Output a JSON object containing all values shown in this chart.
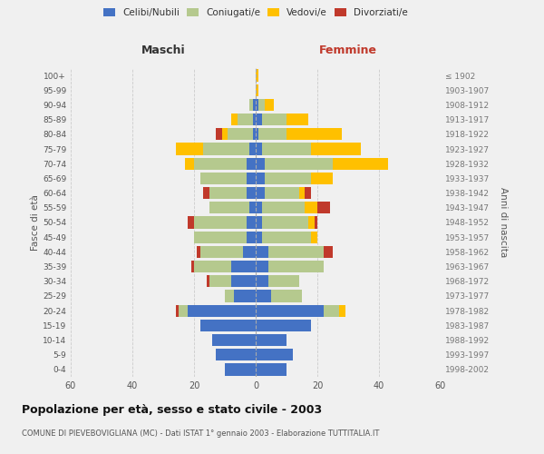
{
  "age_groups": [
    "0-4",
    "5-9",
    "10-14",
    "15-19",
    "20-24",
    "25-29",
    "30-34",
    "35-39",
    "40-44",
    "45-49",
    "50-54",
    "55-59",
    "60-64",
    "65-69",
    "70-74",
    "75-79",
    "80-84",
    "85-89",
    "90-94",
    "95-99",
    "100+"
  ],
  "birth_years": [
    "1998-2002",
    "1993-1997",
    "1988-1992",
    "1983-1987",
    "1978-1982",
    "1973-1977",
    "1968-1972",
    "1963-1967",
    "1958-1962",
    "1953-1957",
    "1948-1952",
    "1943-1947",
    "1938-1942",
    "1933-1937",
    "1928-1932",
    "1923-1927",
    "1918-1922",
    "1913-1917",
    "1908-1912",
    "1903-1907",
    "≤ 1902"
  ],
  "colors": {
    "celibi": "#4472c4",
    "coniugati": "#b5c98e",
    "vedovi": "#ffc000",
    "divorziati": "#c0392b"
  },
  "males": {
    "celibi": [
      10,
      13,
      14,
      18,
      22,
      7,
      8,
      8,
      4,
      3,
      3,
      2,
      3,
      3,
      3,
      2,
      1,
      1,
      1,
      0,
      0
    ],
    "coniugati": [
      0,
      0,
      0,
      0,
      3,
      3,
      7,
      12,
      14,
      17,
      17,
      13,
      12,
      15,
      17,
      15,
      8,
      5,
      1,
      0,
      0
    ],
    "vedovi": [
      0,
      0,
      0,
      0,
      0,
      0,
      0,
      0,
      0,
      0,
      0,
      0,
      0,
      0,
      3,
      9,
      2,
      2,
      0,
      0,
      0
    ],
    "divorziati": [
      0,
      0,
      0,
      0,
      1,
      0,
      1,
      1,
      1,
      0,
      2,
      0,
      2,
      0,
      0,
      0,
      2,
      0,
      0,
      0,
      0
    ]
  },
  "females": {
    "celibi": [
      10,
      12,
      10,
      18,
      22,
      5,
      4,
      4,
      4,
      2,
      2,
      2,
      3,
      3,
      3,
      2,
      1,
      2,
      1,
      0,
      0
    ],
    "coniugati": [
      0,
      0,
      0,
      0,
      5,
      10,
      10,
      18,
      18,
      16,
      15,
      14,
      11,
      15,
      22,
      16,
      9,
      8,
      2,
      0,
      0
    ],
    "vedovi": [
      0,
      0,
      0,
      0,
      2,
      0,
      0,
      0,
      0,
      2,
      2,
      4,
      2,
      7,
      18,
      16,
      18,
      7,
      3,
      1,
      1
    ],
    "divorziati": [
      0,
      0,
      0,
      0,
      0,
      0,
      0,
      0,
      3,
      0,
      1,
      4,
      2,
      0,
      0,
      0,
      0,
      0,
      0,
      0,
      0
    ]
  },
  "title": "Popolazione per età, sesso e stato civile - 2003",
  "subtitle": "COMUNE DI PIEVEBOVIGLIANA (MC) - Dati ISTAT 1° gennaio 2003 - Elaborazione TUTTITALIA.IT",
  "xlabel_left": "Maschi",
  "xlabel_right": "Femmine",
  "ylabel_left": "Fasce di età",
  "ylabel_right": "Anni di nascita",
  "xlim": 60,
  "background_color": "#f0f0f0",
  "grid_color": "#cccccc"
}
